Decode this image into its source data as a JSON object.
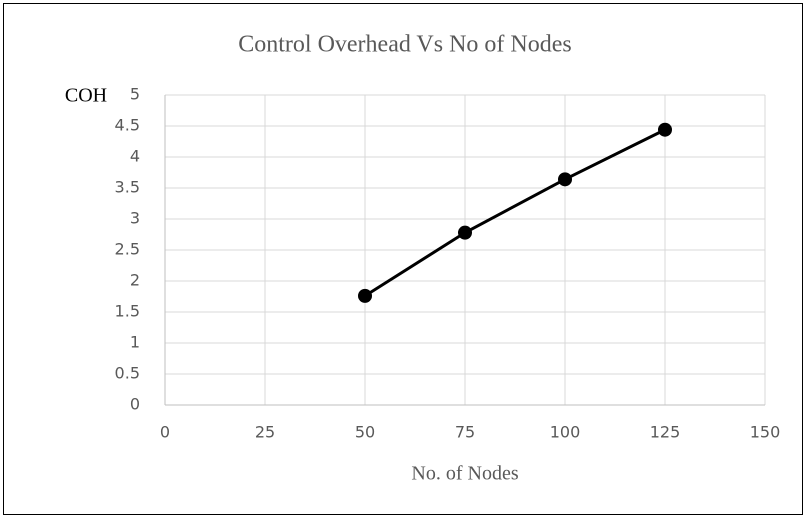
{
  "chart_data": {
    "type": "line",
    "title": "Control Overhead Vs No of Nodes",
    "x_label": "No. of Nodes",
    "y_label": "COH",
    "x": [
      50,
      75,
      100,
      125
    ],
    "series": [
      {
        "name": "COH",
        "color": "#000000",
        "values": [
          1.76,
          2.78,
          3.64,
          4.44
        ]
      }
    ],
    "xlim": [
      0,
      150
    ],
    "xticks": [
      0,
      25,
      50,
      75,
      100,
      125,
      150
    ],
    "ylim": [
      0,
      5
    ],
    "yticks": [
      0,
      0.5,
      1,
      1.5,
      2,
      2.5,
      3,
      3.5,
      4,
      4.5,
      5
    ],
    "grid": true,
    "markers": true
  }
}
